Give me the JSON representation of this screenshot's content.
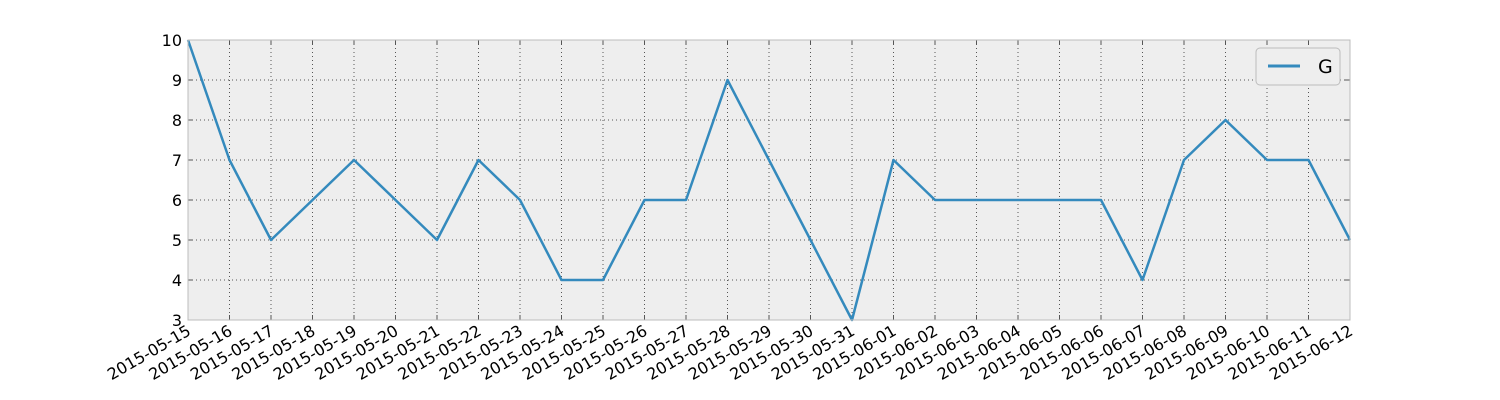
{
  "chart_data": {
    "type": "line",
    "x": [
      "2015-05-15",
      "2015-05-16",
      "2015-05-17",
      "2015-05-18",
      "2015-05-19",
      "2015-05-20",
      "2015-05-21",
      "2015-05-22",
      "2015-05-23",
      "2015-05-24",
      "2015-05-25",
      "2015-05-26",
      "2015-05-27",
      "2015-05-28",
      "2015-05-29",
      "2015-05-30",
      "2015-05-31",
      "2015-06-01",
      "2015-06-02",
      "2015-06-03",
      "2015-06-04",
      "2015-06-05",
      "2015-06-06",
      "2015-06-07",
      "2015-06-08",
      "2015-06-09",
      "2015-06-10",
      "2015-06-11",
      "2015-06-12"
    ],
    "series": [
      {
        "name": "G",
        "color": "#348abd",
        "values": [
          10,
          7,
          5,
          6,
          7,
          6,
          5,
          7,
          6,
          4,
          4,
          6,
          6,
          9,
          7,
          5,
          3,
          7,
          6,
          6,
          6,
          6,
          6,
          4,
          7,
          8,
          7,
          7,
          5
        ]
      }
    ],
    "ylim": [
      3,
      10
    ],
    "yticks": [
      3,
      4,
      5,
      6,
      7,
      8,
      9,
      10
    ],
    "xlabel": "",
    "ylabel": "",
    "title": "",
    "grid": true,
    "legend_position": "top-right",
    "background_color": "#eeeeee"
  }
}
